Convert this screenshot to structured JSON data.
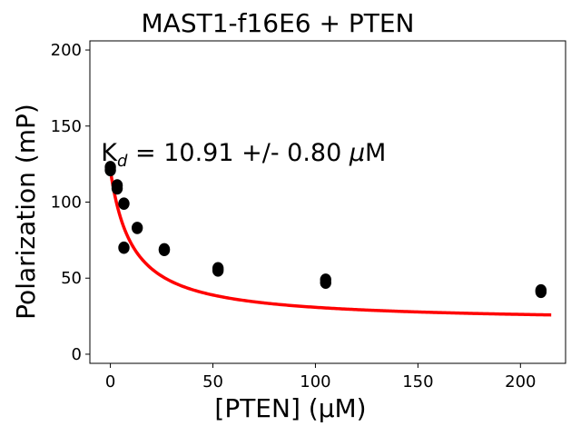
{
  "chart_data": {
    "type": "scatter",
    "title": "MAST1-f16E6 + PTEN",
    "xlabel": "[PTEN] (µM)",
    "ylabel": "Polarization (mP)",
    "xlim": [
      -10,
      222
    ],
    "ylim": [
      -6,
      206
    ],
    "xticks": [
      0,
      50,
      100,
      150,
      200
    ],
    "yticks": [
      0,
      50,
      100,
      150,
      200
    ],
    "annotation": {
      "k_prefix": "K",
      "k_subscript": "d",
      "text": " = 10.91 +/- 0.80 ",
      "mu": "μ",
      "unit": "M",
      "anchor_x": -5,
      "anchor_y": 133
    },
    "series": [
      {
        "name": "data",
        "kind": "scatter",
        "color": "#000000",
        "x": [
          0,
          0,
          3.3,
          3.3,
          6.6,
          6.6,
          13.1,
          26.3,
          26.3,
          52.5,
          52.5,
          105,
          105,
          210,
          210
        ],
        "y": [
          123,
          121,
          111,
          109,
          99,
          70,
          83,
          69,
          68.5,
          56.5,
          55,
          49,
          47,
          42,
          41
        ]
      },
      {
        "name": "fit",
        "kind": "line",
        "color": "#ff0000",
        "model": "Y = ymin + (ymax - ymin) * Kd / (Kd + X)",
        "params": {
          "ymax": 121,
          "ymin": 21,
          "Kd": 10.91
        },
        "x_range": [
          0,
          215
        ]
      }
    ]
  }
}
